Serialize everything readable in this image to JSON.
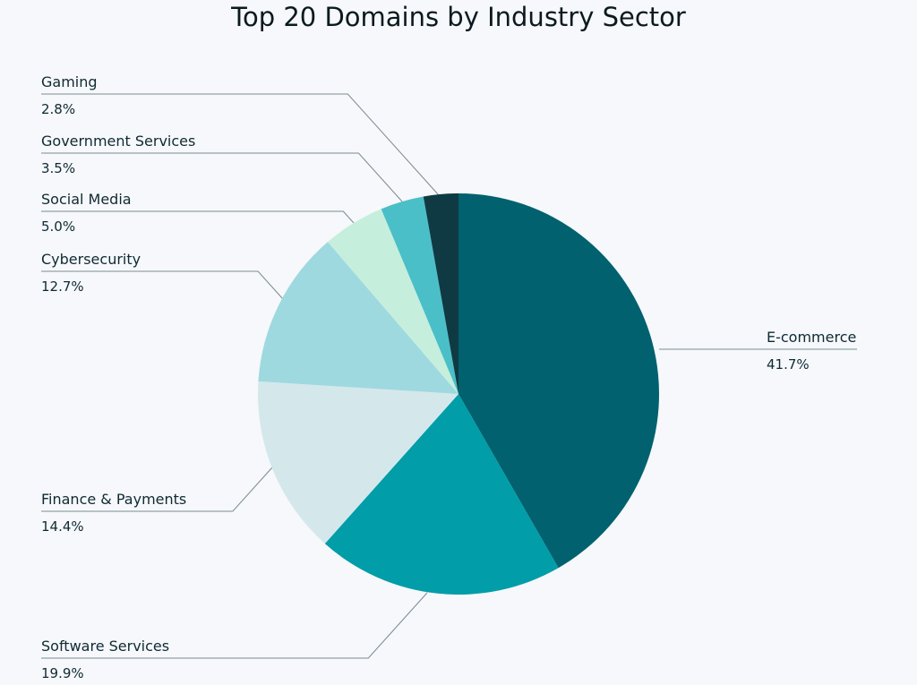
{
  "chart_data": {
    "type": "pie",
    "title": "Top 20 Domains by Industry Sector",
    "slices": [
      {
        "label": "E-commerce",
        "value": 41.7,
        "value_label": "41.7%",
        "color": "#02616e"
      },
      {
        "label": "Software Services",
        "value": 19.9,
        "value_label": "19.9%",
        "color": "#019da8"
      },
      {
        "label": "Finance & Payments",
        "value": 14.4,
        "value_label": "14.4%",
        "color": "#d4e8ec"
      },
      {
        "label": "Cybersecurity",
        "value": 12.7,
        "value_label": "12.7%",
        "color": "#9ed9df"
      },
      {
        "label": "Social Media",
        "value": 5.0,
        "value_label": "5.0%",
        "color": "#c5efdc"
      },
      {
        "label": "Government Services",
        "value": 3.5,
        "value_label": "3.5%",
        "color": "#4bbfc8"
      },
      {
        "label": "Gaming",
        "value": 2.8,
        "value_label": "2.8%",
        "color": "#0f3a44"
      }
    ],
    "start_angle_deg": 0,
    "direction": "clockwise",
    "legend": "callout-labels"
  }
}
